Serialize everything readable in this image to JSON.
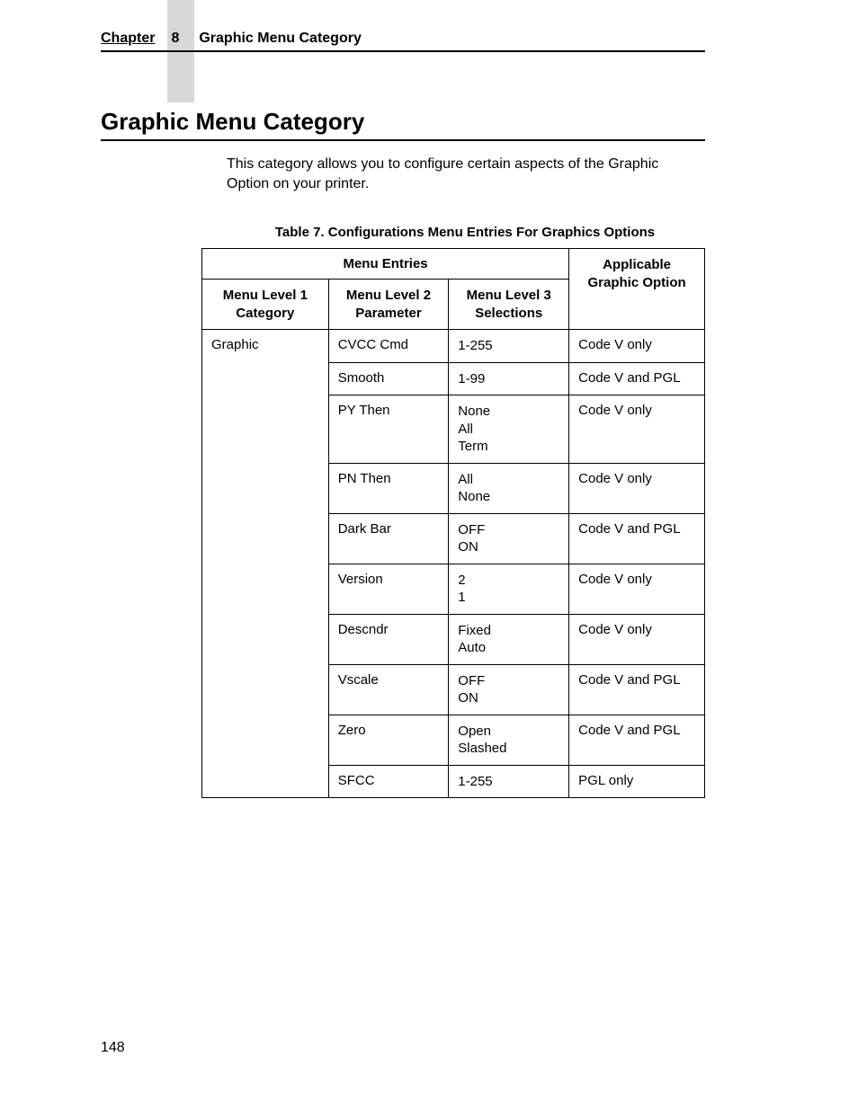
{
  "header": {
    "chapter_label": "Chapter",
    "chapter_number": "8",
    "chapter_title": "Graphic Menu Category"
  },
  "heading": "Graphic Menu Category",
  "intro": "This category allows you to configure certain aspects of the Graphic Option on your printer.",
  "table_caption": "Table 7. Configurations Menu Entries For Graphics Options",
  "table": {
    "header_menu_entries": "Menu Entries",
    "header_applicable": "Applicable\nGraphic Option",
    "header_level1": "Menu Level 1\nCategory",
    "header_level2": "Menu Level 2\nParameter",
    "header_level3": "Menu Level 3\nSelections",
    "category": "Graphic",
    "rows": [
      {
        "param": "CVCC Cmd",
        "selections": "1-255",
        "option": "Code V only"
      },
      {
        "param": "Smooth",
        "selections": "1-99",
        "option": "Code V and PGL"
      },
      {
        "param": "PY Then",
        "selections": "None\nAll\nTerm",
        "option": "Code V only"
      },
      {
        "param": "PN Then",
        "selections": "All\nNone",
        "option": "Code V only"
      },
      {
        "param": "Dark Bar",
        "selections": "OFF\nON",
        "option": "Code V and PGL"
      },
      {
        "param": "Version",
        "selections": "2\n1",
        "option": "Code V only"
      },
      {
        "param": "Descndr",
        "selections": "Fixed\nAuto",
        "option": "Code V only"
      },
      {
        "param": "Vscale",
        "selections": "OFF\nON",
        "option": "Code V and PGL"
      },
      {
        "param": "Zero",
        "selections": "Open\nSlashed",
        "option": "Code V and PGL"
      },
      {
        "param": "SFCC",
        "selections": "1-255",
        "option": "PGL only"
      }
    ]
  },
  "page_number": "148"
}
